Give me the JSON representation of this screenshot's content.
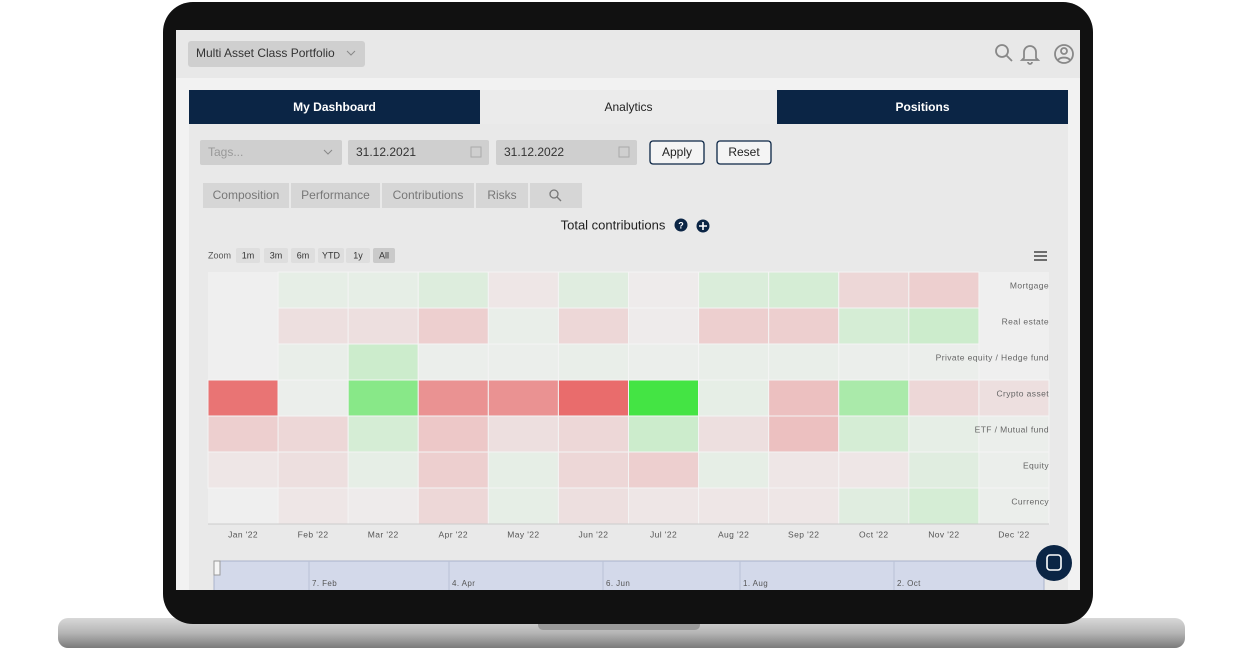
{
  "header": {
    "portfolio": "Multi Asset Class Portfolio"
  },
  "tabs": [
    "My Dashboard",
    "Analytics",
    "Positions"
  ],
  "filters": {
    "tags": "Tags...",
    "start_date": "31.12.2021",
    "end_date": "31.12.2022",
    "apply": "Apply",
    "reset": "Reset"
  },
  "subtabs": [
    "Composition",
    "Performance",
    "Contributions",
    "Risks"
  ],
  "zoom": {
    "label": "Zoom",
    "options": [
      "1m",
      "3m",
      "6m",
      "YTD",
      "1y",
      "All"
    ]
  },
  "chart_data": {
    "type": "heatmap",
    "title": "Total contributions",
    "categories": [
      "Jan '22",
      "Feb '22",
      "Mar '22",
      "Apr '22",
      "May '22",
      "Jun '22",
      "Jul '22",
      "Aug '22",
      "Sep '22",
      "Oct '22",
      "Nov '22",
      "Dec '22"
    ],
    "rows": [
      "Mortgage",
      "Real estate",
      "Private equity / Hedge fund",
      "Crypto asset",
      "ETF / Mutual fund",
      "Equity",
      "Currency"
    ],
    "values": [
      [
        null,
        0.05,
        0.05,
        0.1,
        -0.05,
        0.08,
        -0.02,
        0.12,
        0.15,
        -0.15,
        -0.2,
        null
      ],
      [
        null,
        -0.1,
        -0.1,
        -0.2,
        0.03,
        -0.15,
        -0.02,
        -0.2,
        -0.2,
        0.15,
        0.2,
        null
      ],
      [
        null,
        0.03,
        0.2,
        0.02,
        0.02,
        0.03,
        0.02,
        0.03,
        0.03,
        0.02,
        0.02,
        null
      ],
      [
        -0.8,
        0.02,
        0.6,
        -0.6,
        -0.6,
        -0.85,
        1.0,
        0.05,
        -0.3,
        0.4,
        -0.15,
        -0.1
      ],
      [
        -0.2,
        -0.15,
        0.15,
        -0.25,
        -0.1,
        -0.15,
        0.2,
        -0.1,
        -0.3,
        0.15,
        0.05,
        0.02
      ],
      [
        -0.05,
        -0.1,
        0.05,
        -0.2,
        0.05,
        -0.15,
        -0.2,
        0.05,
        -0.05,
        -0.05,
        0.08,
        0.02
      ],
      [
        null,
        -0.05,
        -0.02,
        -0.15,
        0.05,
        -0.1,
        -0.05,
        -0.05,
        -0.05,
        0.08,
        0.15,
        0.02
      ]
    ],
    "colors": {
      "negative": "#e85555",
      "neutral": "#eeeeee",
      "positive": "#44e444"
    }
  },
  "navigator": {
    "labels": [
      "7. Feb",
      "4. Apr",
      "6. Jun",
      "1. Aug",
      "2. Oct"
    ]
  }
}
